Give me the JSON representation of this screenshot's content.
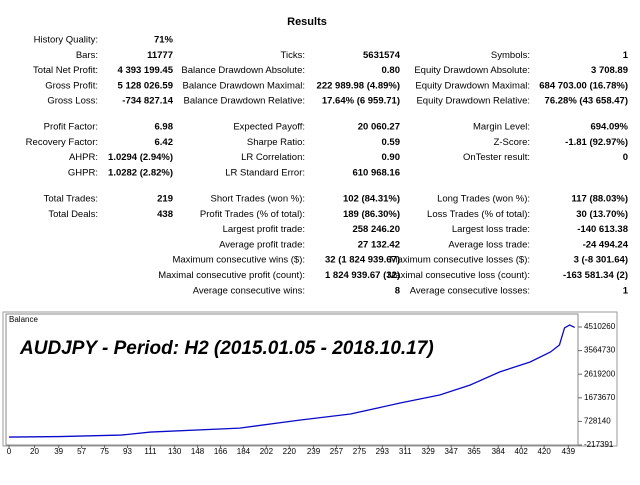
{
  "title": "Results",
  "sections": [
    {
      "rows": [
        [
          {
            "label": "History Quality:",
            "value": "71%"
          },
          null,
          null
        ],
        [
          {
            "label": "Bars:",
            "value": "11777"
          },
          {
            "label": "Ticks:",
            "value": "5631574"
          },
          {
            "label": "Symbols:",
            "value": "1"
          }
        ],
        [
          {
            "label": "Total Net Profit:",
            "value": "4 393 199.45"
          },
          {
            "label": "Balance Drawdown Absolute:",
            "value": "0.80"
          },
          {
            "label": "Equity Drawdown Absolute:",
            "value": "3 708.89"
          }
        ],
        [
          {
            "label": "Gross Profit:",
            "value": "5 128 026.59"
          },
          {
            "label": "Balance Drawdown Maximal:",
            "value": "222 989.98 (4.89%)"
          },
          {
            "label": "Equity Drawdown Maximal:",
            "value": "684 703.00 (16.78%)"
          }
        ],
        [
          {
            "label": "Gross Loss:",
            "value": "-734 827.14"
          },
          {
            "label": "Balance Drawdown Relative:",
            "value": "17.64% (6 959.71)"
          },
          {
            "label": "Equity Drawdown Relative:",
            "value": "76.28% (43 658.47)"
          }
        ]
      ]
    },
    {
      "rows": [
        [
          {
            "label": "Profit Factor:",
            "value": "6.98"
          },
          {
            "label": "Expected Payoff:",
            "value": "20 060.27"
          },
          {
            "label": "Margin Level:",
            "value": "694.09%"
          }
        ],
        [
          {
            "label": "Recovery Factor:",
            "value": "6.42"
          },
          {
            "label": "Sharpe Ratio:",
            "value": "0.59"
          },
          {
            "label": "Z-Score:",
            "value": "-1.81 (92.97%)"
          }
        ],
        [
          {
            "label": "AHPR:",
            "value": "1.0294 (2.94%)"
          },
          {
            "label": "LR Correlation:",
            "value": "0.90"
          },
          {
            "label": "OnTester result:",
            "value": "0"
          }
        ],
        [
          {
            "label": "GHPR:",
            "value": "1.0282 (2.82%)"
          },
          {
            "label": "LR Standard Error:",
            "value": "610 968.16"
          },
          null
        ]
      ]
    },
    {
      "rows": [
        [
          {
            "label": "Total Trades:",
            "value": "219"
          },
          {
            "label": "Short Trades (won %):",
            "value": "102 (84.31%)"
          },
          {
            "label": "Long Trades (won %):",
            "value": "117 (88.03%)"
          }
        ],
        [
          {
            "label": "Total Deals:",
            "value": "438"
          },
          {
            "label": "Profit Trades (% of total):",
            "value": "189 (86.30%)"
          },
          {
            "label": "Loss Trades (% of total):",
            "value": "30 (13.70%)"
          }
        ],
        [
          null,
          {
            "label": "Largest profit trade:",
            "value": "258 246.20"
          },
          {
            "label": "Largest loss trade:",
            "value": "-140 613.38"
          }
        ],
        [
          null,
          {
            "label": "Average profit trade:",
            "value": "27 132.42"
          },
          {
            "label": "Average loss trade:",
            "value": "-24 494.24"
          }
        ],
        [
          null,
          {
            "label": "Maximum consecutive wins ($):",
            "value": "32 (1 824 939.67)"
          },
          {
            "label": "Maximum consecutive losses ($):",
            "value": "3 (-8 301.64)"
          }
        ],
        [
          null,
          {
            "label": "Maximal consecutive profit (count):",
            "value": "1 824 939.67 (32)"
          },
          {
            "label": "Maximal consecutive loss (count):",
            "value": "-163 581.34 (2)"
          }
        ],
        [
          null,
          {
            "label": "Average consecutive wins:",
            "value": "8"
          },
          {
            "label": "Average consecutive losses:",
            "value": "1"
          }
        ]
      ]
    }
  ],
  "chart_data": {
    "type": "line",
    "title": "Balance",
    "annotation": "AUDJPY - Period:  H2 (2015.01.05 - 2018.10.17)",
    "x": [
      0,
      40,
      88,
      111,
      181,
      228,
      268,
      307,
      338,
      362,
      385,
      409,
      425,
      432,
      436,
      440,
      444
    ],
    "series": [
      {
        "name": "Balance",
        "color": "#0a0ac8",
        "values": [
          100000,
          120000,
          180000,
          300000,
          460000,
          780000,
          1024000,
          1465000,
          1786000,
          2186000,
          2707000,
          3108000,
          3509000,
          3789000,
          4470000,
          4590000,
          4493000
        ]
      }
    ],
    "xlim": [
      0,
      445
    ],
    "xticks": [
      0,
      20,
      39,
      57,
      75,
      93,
      111,
      130,
      148,
      166,
      184,
      202,
      220,
      239,
      257,
      275,
      293,
      311,
      329,
      347,
      365,
      384,
      402,
      420,
      439
    ],
    "ylim": [
      -217391,
      4950000
    ],
    "yticks": [
      -217391,
      728140,
      1673670,
      2619200,
      3564730,
      4510260
    ],
    "annotation_color": "#c0282d"
  }
}
